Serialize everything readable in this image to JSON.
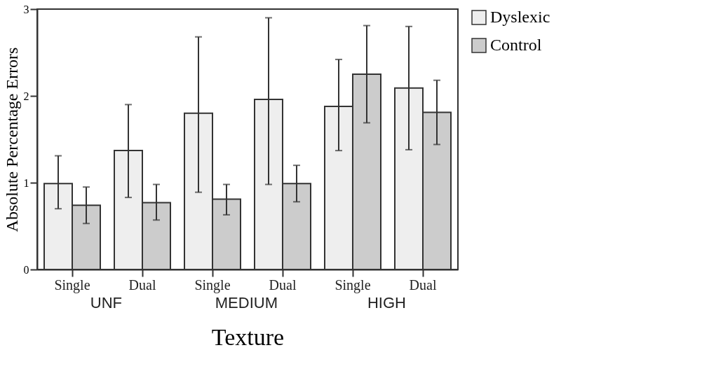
{
  "chart_data": {
    "type": "bar",
    "ylabel": "Absolute Percentage Errors",
    "xlabel": "Texture",
    "categories": [
      "Single",
      "Dual",
      "Single",
      "Dual",
      "Single",
      "Dual"
    ],
    "annotations": [
      "UNF",
      "MEDIUM",
      "HIGH"
    ],
    "series": [
      {
        "name": "Dyslexic",
        "color": "#eeeeee",
        "values": [
          0.99,
          1.37,
          1.8,
          1.96,
          1.88,
          2.09
        ],
        "errors": [
          [
            0.7,
            1.31
          ],
          [
            0.83,
            1.9
          ],
          [
            0.89,
            2.68
          ],
          [
            0.98,
            2.9
          ],
          [
            1.37,
            2.42
          ],
          [
            1.38,
            2.8
          ]
        ]
      },
      {
        "name": "Control",
        "color": "#cccccc",
        "values": [
          0.74,
          0.77,
          0.81,
          0.99,
          2.25,
          1.81
        ],
        "errors": [
          [
            0.53,
            0.95
          ],
          [
            0.57,
            0.98
          ],
          [
            0.63,
            0.98
          ],
          [
            0.78,
            1.2
          ],
          [
            1.69,
            2.81
          ],
          [
            1.44,
            2.18
          ]
        ]
      }
    ],
    "ylim": [
      0,
      3
    ],
    "yticks": [
      0,
      1,
      2,
      3
    ],
    "grid": false,
    "legend": "right"
  }
}
